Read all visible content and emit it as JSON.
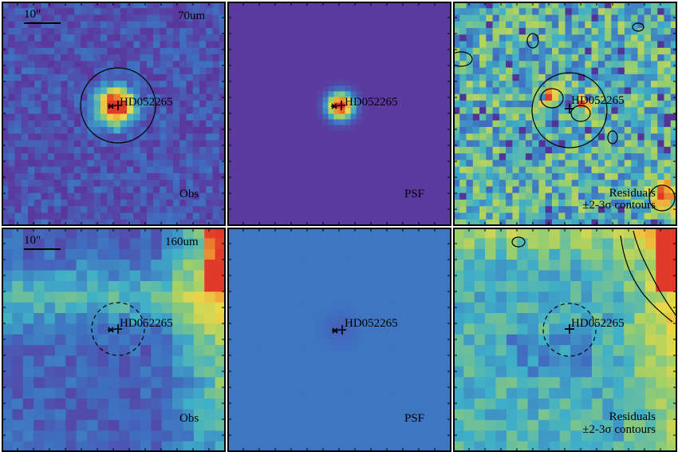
{
  "target_name": "HD052265",
  "scale_bar_label": "10\"",
  "wavelengths": {
    "row1": "70um",
    "row2": "160um"
  },
  "panel_labels": {
    "obs": "Obs",
    "psf": "PSF",
    "residuals_line1": "Residuals",
    "residuals_line2": "±2-3σ contours"
  },
  "colors": {
    "deep_purple": "#4a2a8a",
    "purple": "#5b3aa0",
    "blue": "#3f6fc0",
    "cyan": "#3fb0c8",
    "green": "#9ccf6a",
    "yellow": "#e9d84a",
    "orange": "#f0a030",
    "red": "#e23a2a"
  }
}
